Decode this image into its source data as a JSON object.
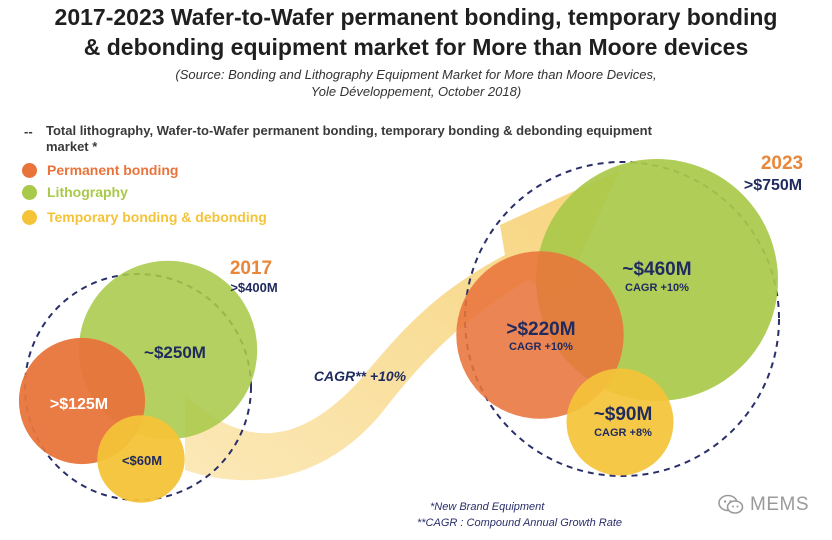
{
  "header": {
    "title_line1": "2017-2023 Wafer-to-Wafer permanent bonding, temporary bonding",
    "title_line2": "& debonding equipment market for More than Moore devices",
    "source_line1": "(Source: Bonding and Lithography Equipment Market for More than Moore Devices,",
    "source_line2": "Yole Développement, October 2018)"
  },
  "legend": {
    "dash": "--",
    "total_label": "Total lithography, Wafer-to-Wafer permanent bonding, temporary bonding & debonding equipment market *",
    "items": [
      {
        "label": "Permanent bonding",
        "color": "#e8743b"
      },
      {
        "label": "Lithography",
        "color": "#a9c94a"
      },
      {
        "label": "Temporary bonding & debonding",
        "color": "#f4c338"
      }
    ]
  },
  "colors": {
    "permanent_bonding": "#e8743b",
    "lithography": "#a9c94a",
    "temporary_bonding": "#f4c338",
    "year_label": "#e8873a",
    "total_label": "#1f2a5e",
    "arrow": "#f8d98a",
    "dashed_circle": "#2a2f6a"
  },
  "chart_data": {
    "type": "bubble",
    "cagr_label": "CAGR** +10%",
    "groups": [
      {
        "year": "2017",
        "total": ">$400M",
        "bubbles": [
          {
            "segment": "Lithography",
            "value_label": "~$250M",
            "value": 250,
            "cagr": ""
          },
          {
            "segment": "Permanent bonding",
            "value_label": ">$125M",
            "value": 125,
            "cagr": ""
          },
          {
            "segment": "Temporary bonding & debonding",
            "value_label": "<$60M",
            "value": 60,
            "cagr": ""
          }
        ]
      },
      {
        "year": "2023",
        "total": ">$750M",
        "bubbles": [
          {
            "segment": "Lithography",
            "value_label": "~$460M",
            "value": 460,
            "cagr": "CAGR +10%"
          },
          {
            "segment": "Permanent bonding",
            "value_label": ">$220M",
            "value": 220,
            "cagr": "CAGR +10%"
          },
          {
            "segment": "Temporary bonding & debonding",
            "value_label": "~$90M",
            "value": 90,
            "cagr": "CAGR +8%"
          }
        ]
      }
    ]
  },
  "footnotes": {
    "line1": "*New Brand Equipment",
    "line2": "**CAGR : Compound Annual Growth Rate"
  },
  "watermark": {
    "text": "MEMS",
    "icon": "wechat-icon"
  }
}
